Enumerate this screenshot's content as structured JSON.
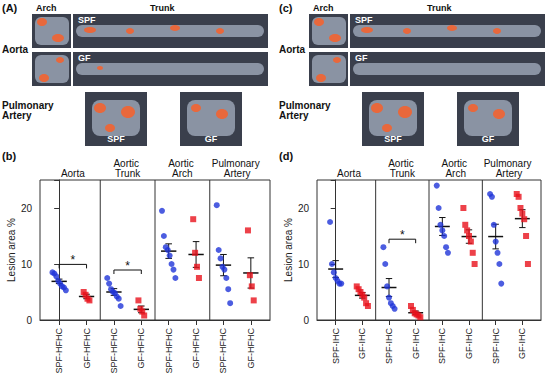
{
  "image_panels": [
    {
      "label": "(A)",
      "arch": "Arch",
      "trunk": "Trunk",
      "aorta": "Aorta",
      "rows": [
        "SPF",
        "GF"
      ],
      "pulmonary": "Pulmonary Artery",
      "pulmonary_labels": [
        "SPF",
        "GF"
      ]
    },
    {
      "label": "(c)",
      "arch": "Arch",
      "trunk": "Trunk",
      "aorta": "Aorta",
      "rows": [
        "SPF",
        "GF"
      ],
      "pulmonary": "Pulmonary Artery",
      "pulmonary_labels": [
        "SPF",
        "GF"
      ]
    }
  ],
  "chart_data": [
    {
      "type": "scatter",
      "label": "(b)",
      "ylabel": "Lesion area %",
      "groups": [
        "Aorta",
        "Aortic Trunk",
        "Aortic Arch",
        "Pulmonary Artery"
      ],
      "ylim": [
        0,
        25
      ],
      "yticks": [
        0,
        10,
        20
      ],
      "grid": false,
      "series": [
        {
          "name": "SPF-HFHC",
          "color": "#1f35d8",
          "marker": "circle",
          "values": [
            [
              8.5,
              8.3,
              7.8,
              7.0,
              6.5,
              6.0,
              5.8,
              5.3
            ],
            [
              7.5,
              6.5,
              5.5,
              5.0,
              4.8,
              4.2,
              3.8,
              2.5
            ],
            [
              19.5,
              15.0,
              13.0,
              12.5,
              11.5,
              10.0,
              9.0,
              7.5
            ],
            [
              20.5,
              12.5,
              11.0,
              9.5,
              9.0,
              7.5,
              5.5,
              3.0
            ]
          ],
          "mean": [
            6.9,
            5.0,
            12.3,
            9.8
          ],
          "sem": [
            0.4,
            0.6,
            1.3,
            1.9
          ]
        },
        {
          "name": "GF-HFHC",
          "color": "#e8121b",
          "marker": "square",
          "values": [
            [
              5.0,
              4.5,
              3.8,
              3.5
            ],
            [
              3.5,
              2.0,
              1.5,
              0.8
            ],
            [
              18.0,
              12.0,
              9.5,
              7.5
            ],
            [
              16.0,
              8.0,
              6.0,
              3.5
            ]
          ],
          "mean": [
            4.2,
            1.9,
            11.7,
            8.4
          ],
          "sem": [
            0.4,
            0.6,
            2.3,
            2.7
          ]
        }
      ],
      "annotations": [
        {
          "group": "Aorta",
          "text": "*"
        },
        {
          "group": "Aortic Trunk",
          "text": "*"
        }
      ]
    },
    {
      "type": "scatter",
      "label": "(d)",
      "ylabel": "Lesion area %",
      "groups": [
        "Aorta",
        "Aortic Trunk",
        "Aortic Arch",
        "Pulmonary Artery"
      ],
      "ylim": [
        0,
        25
      ],
      "yticks": [
        0,
        10,
        20
      ],
      "grid": false,
      "series": [
        {
          "name": "SPF-IHC",
          "color": "#1f35d8",
          "marker": "circle",
          "values": [
            [
              17.5,
              10.0,
              8.5,
              7.5,
              7.0,
              6.5,
              6.5
            ],
            [
              13.0,
              10.0,
              6.0,
              4.0,
              3.0,
              2.5,
              2.0
            ],
            [
              24.0,
              20.0,
              17.0,
              16.0,
              15.0,
              13.0,
              12.0
            ],
            [
              22.5,
              22.0,
              17.0,
              14.0,
              12.0,
              10.0,
              6.5
            ]
          ],
          "mean": [
            9.1,
            5.8,
            16.7,
            14.9
          ],
          "sem": [
            1.5,
            1.6,
            1.6,
            2.2
          ]
        },
        {
          "name": "GF-IHC",
          "color": "#e8121b",
          "marker": "square",
          "values": [
            [
              6.0,
              5.5,
              5.0,
              4.5,
              4.0,
              3.0,
              2.5
            ],
            [
              2.5,
              1.8,
              1.2,
              1.0,
              0.8,
              0.5
            ],
            [
              20.0,
              17.0,
              16.0,
              15.0,
              14.0,
              12.0,
              10.0
            ],
            [
              22.5,
              22.0,
              20.0,
              19.0,
              18.0,
              15.0,
              10.0
            ]
          ],
          "mean": [
            4.4,
            1.3,
            14.9,
            18.1
          ],
          "sem": [
            0.5,
            0.3,
            1.2,
            1.6
          ]
        }
      ],
      "annotations": [
        {
          "group": "Aortic Trunk",
          "text": "*"
        }
      ]
    }
  ]
}
